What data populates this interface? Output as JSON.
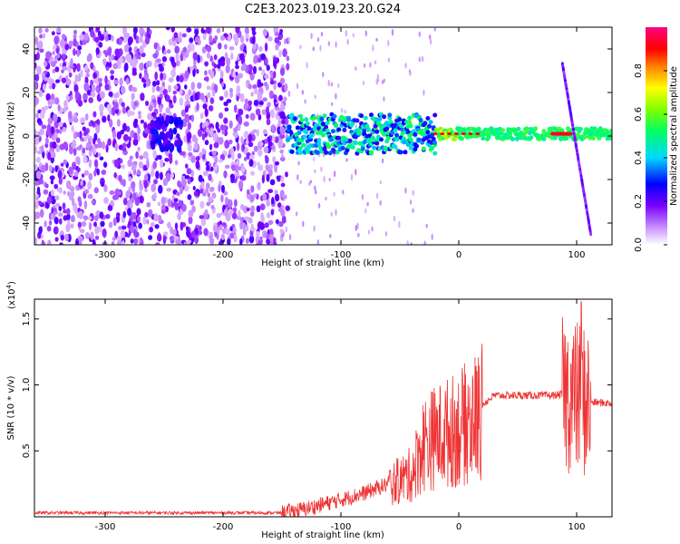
{
  "title": "C2E3.2023.019.23.20.G24",
  "chart_data": [
    {
      "type": "heatmap",
      "xlabel": "Height of straight line (km)",
      "ylabel": "Frequency (Hz)",
      "xlim": [
        -360,
        130
      ],
      "ylim": [
        -50,
        50
      ],
      "x_ticks": [
        "-300",
        "-200",
        "-100",
        "0",
        "100"
      ],
      "y_ticks": [
        "40",
        "20",
        "0",
        "-20",
        "-40"
      ],
      "colorbar": {
        "label": "Normalized spectral amplitude",
        "range": [
          0,
          1
        ],
        "ticks": [
          "0.0",
          "0.2",
          "0.4",
          "0.6",
          "0.8"
        ],
        "colors": [
          "#ffffff",
          "#c890ff",
          "#7a00ff",
          "#0000ff",
          "#00d8ff",
          "#00ff66",
          "#80ff00",
          "#ffff00",
          "#ff8000",
          "#ff0000",
          "#ff0080"
        ]
      },
      "features": {
        "noise_region_x": [
          -360,
          -145
        ],
        "carrier_band_freq_hz": 1,
        "carrier_start_x": -145,
        "peak_amplitude_x": [
          80,
          95
        ],
        "diagonal_streak": {
          "x": [
            88,
            112
          ],
          "freq_hz": [
            33,
            -45
          ]
        }
      }
    },
    {
      "type": "line",
      "xlabel": "Height of straight line (km)",
      "ylabel": "SNR (10 * v/v)",
      "multiplier_label": "(x10",
      "multiplier_exp": "4",
      "xlim": [
        -360,
        130
      ],
      "ylim": [
        0,
        1.65
      ],
      "x_ticks": [
        "-300",
        "-200",
        "-100",
        "0",
        "100"
      ],
      "y_ticks": [
        "0.5",
        "1.0",
        "1.5"
      ],
      "series_color": "#ee3333",
      "profile": [
        {
          "x": -360,
          "y": 0.03
        },
        {
          "x": -150,
          "y": 0.03
        },
        {
          "x": -130,
          "y": 0.06
        },
        {
          "x": -100,
          "y": 0.13
        },
        {
          "x": -80,
          "y": 0.18
        },
        {
          "x": -60,
          "y": 0.25
        },
        {
          "x": -40,
          "y": 0.35
        },
        {
          "x": -30,
          "y": 0.6
        },
        {
          "x": -20,
          "y": 0.65
        },
        {
          "x": 0,
          "y": 0.72
        },
        {
          "x": 20,
          "y": 0.85
        },
        {
          "x": 30,
          "y": 0.92
        },
        {
          "x": 80,
          "y": 0.92
        },
        {
          "x": 90,
          "y": 0.93
        },
        {
          "x": 100,
          "y": 0.9
        },
        {
          "x": 110,
          "y": 0.87
        },
        {
          "x": 130,
          "y": 0.86
        }
      ],
      "peak": {
        "x": 104,
        "y": 1.63
      }
    }
  ]
}
